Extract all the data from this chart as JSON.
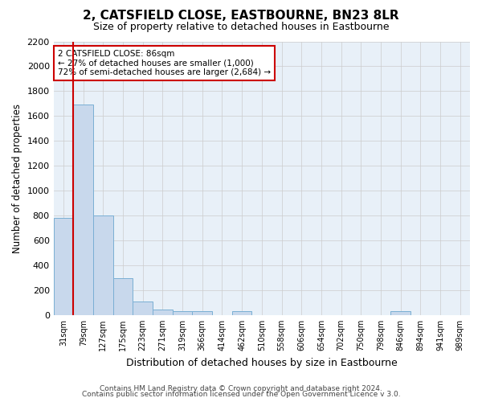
{
  "title": "2, CATSFIELD CLOSE, EASTBOURNE, BN23 8LR",
  "subtitle": "Size of property relative to detached houses in Eastbourne",
  "xlabel": "Distribution of detached houses by size in Eastbourne",
  "ylabel": "Number of detached properties",
  "footer_line1": "Contains HM Land Registry data © Crown copyright and database right 2024.",
  "footer_line2": "Contains public sector information licensed under the Open Government Licence v 3.0.",
  "annotation_line1": "2 CATSFIELD CLOSE: 86sqm",
  "annotation_line2": "← 27% of detached houses are smaller (1,000)",
  "annotation_line3": "72% of semi-detached houses are larger (2,684) →",
  "bar_categories": [
    "31sqm",
    "79sqm",
    "127sqm",
    "175sqm",
    "223sqm",
    "271sqm",
    "319sqm",
    "366sqm",
    "414sqm",
    "462sqm",
    "510sqm",
    "558sqm",
    "606sqm",
    "654sqm",
    "702sqm",
    "750sqm",
    "798sqm",
    "846sqm",
    "894sqm",
    "941sqm",
    "989sqm"
  ],
  "bar_values": [
    780,
    1690,
    800,
    295,
    110,
    45,
    35,
    35,
    0,
    35,
    0,
    0,
    0,
    0,
    0,
    0,
    0,
    35,
    0,
    0,
    0
  ],
  "bar_color": "#c8d8ec",
  "bar_edge_color": "#7aafd4",
  "grid_color": "#cccccc",
  "background_color": "#ffffff",
  "ax_background": "#e8f0f8",
  "ylim": [
    0,
    2200
  ],
  "yticks": [
    0,
    200,
    400,
    600,
    800,
    1000,
    1200,
    1400,
    1600,
    1800,
    2000,
    2200
  ],
  "vline_color": "#cc0000",
  "vline_x_idx": 1,
  "annotation_box_color": "#ffffff",
  "annotation_box_edge": "#cc0000",
  "figsize": [
    6.0,
    5.0
  ],
  "dpi": 100
}
